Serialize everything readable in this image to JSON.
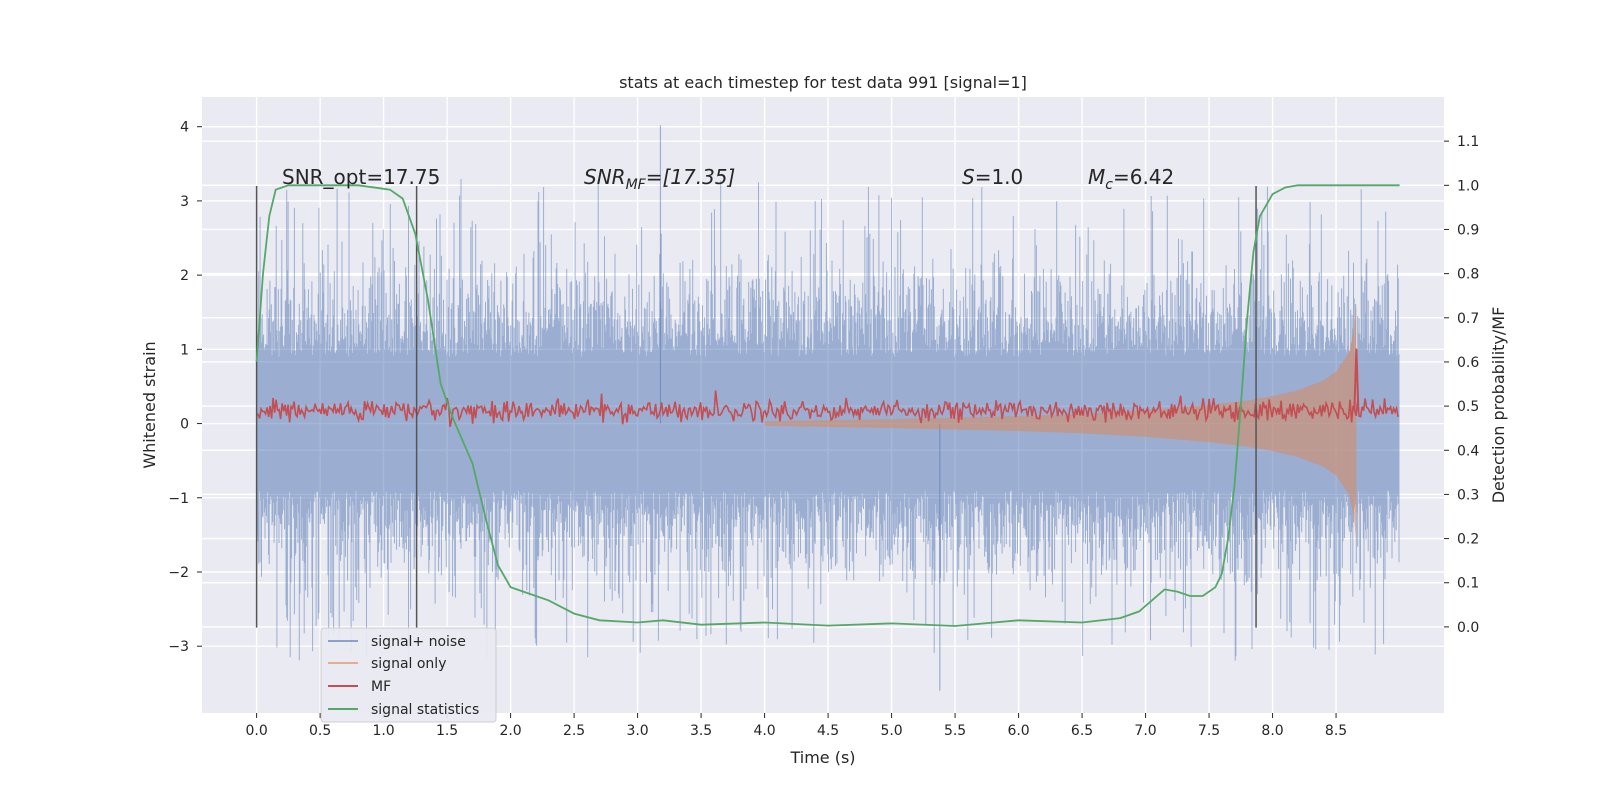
{
  "chart_data": {
    "type": "line",
    "title": "stats at each timestep for test data 991 [signal=1]",
    "xlabel": "Time (s)",
    "ylabel": "Whitened strain",
    "ylabel_right": "Detection probability/MF",
    "xlim": [
      -0.43,
      9.35
    ],
    "ylim": [
      -3.9,
      4.4
    ],
    "ylim_right": [
      -0.195,
      1.2
    ],
    "xticks": [
      "0.0",
      "0.5",
      "1.0",
      "1.5",
      "2.0",
      "2.5",
      "3.0",
      "3.5",
      "4.0",
      "4.5",
      "5.0",
      "5.5",
      "6.0",
      "6.5",
      "7.0",
      "7.5",
      "8.0",
      "8.5"
    ],
    "xtick_values": [
      0,
      0.5,
      1,
      1.5,
      2,
      2.5,
      3,
      3.5,
      4,
      4.5,
      5,
      5.5,
      6,
      6.5,
      7,
      7.5,
      8,
      8.5
    ],
    "yticks_left": [
      "−3",
      "−2",
      "−1",
      "0",
      "1",
      "2",
      "3",
      "4"
    ],
    "ytick_values_left": [
      -3,
      -2,
      -1,
      0,
      1,
      2,
      3,
      4
    ],
    "yticks_right": [
      "0.0",
      "0.1",
      "0.2",
      "0.3",
      "0.4",
      "0.5",
      "0.6",
      "0.7",
      "0.8",
      "0.9",
      "1.0",
      "1.1"
    ],
    "ytick_values_right": [
      0,
      0.1,
      0.2,
      0.3,
      0.4,
      0.5,
      0.6,
      0.7,
      0.8,
      0.9,
      1.0,
      1.1
    ],
    "grid": true,
    "legend_position": "lower-left",
    "legend": [
      "signal+ noise",
      "signal only",
      "MF",
      "signal statistics"
    ],
    "annotations": {
      "snr_opt": "SNR_opt=17.75",
      "snr_mf_main": "SNR",
      "snr_mf_sub": "MF",
      "snr_mf_value": "=[17.35]",
      "s_main": "S",
      "s_value": "=1.0",
      "mc_main": "M",
      "mc_sub": "c",
      "mc_value": "=6.42"
    },
    "vertical_markers_s": [
      0.0,
      1.26,
      7.87
    ],
    "series": [
      {
        "name": "signal+ noise",
        "axis": "left",
        "color": "#4c72b0",
        "alpha": 0.5,
        "description_points": {
          "t_start": 0.0,
          "t_end": 9.0,
          "typical_band": [
            -1.4,
            1.4
          ],
          "peak_max": 4.02,
          "peak_min": -3.6
        }
      },
      {
        "name": "signal only",
        "axis": "left",
        "color": "#dd8452",
        "alpha": 0.5,
        "envelope": {
          "t": [
            4.0,
            5.0,
            6.0,
            6.5,
            7.0,
            7.5,
            7.8,
            8.0,
            8.2,
            8.4,
            8.5,
            8.6,
            8.64,
            8.66
          ],
          "amp": [
            0.03,
            0.06,
            0.1,
            0.13,
            0.18,
            0.25,
            0.31,
            0.37,
            0.45,
            0.58,
            0.7,
            0.95,
            1.25,
            1.6
          ]
        }
      },
      {
        "name": "MF",
        "axis": "right",
        "color": "#c44e52",
        "base": 0.49,
        "noise": 0.012,
        "spike": {
          "t": 8.66,
          "value": 0.63
        }
      },
      {
        "name": "signal statistics",
        "axis": "right",
        "color": "#55a868",
        "t": [
          0.0,
          0.05,
          0.1,
          0.15,
          0.25,
          0.4,
          0.8,
          1.05,
          1.15,
          1.25,
          1.35,
          1.45,
          1.55,
          1.7,
          1.8,
          1.9,
          2.0,
          2.1,
          2.3,
          2.5,
          2.7,
          3.0,
          3.2,
          3.5,
          4.0,
          4.5,
          5.0,
          5.5,
          6.0,
          6.5,
          6.8,
          6.95,
          7.05,
          7.15,
          7.25,
          7.35,
          7.45,
          7.55,
          7.6,
          7.65,
          7.7,
          7.75,
          7.8,
          7.85,
          7.9,
          8.0,
          8.1,
          8.2,
          8.4,
          8.6,
          8.8,
          9.0
        ],
        "values": [
          0.6,
          0.8,
          0.93,
          0.99,
          1.0,
          1.0,
          1.0,
          0.99,
          0.97,
          0.89,
          0.74,
          0.55,
          0.47,
          0.37,
          0.25,
          0.14,
          0.09,
          0.08,
          0.06,
          0.03,
          0.015,
          0.01,
          0.015,
          0.005,
          0.01,
          0.003,
          0.008,
          0.002,
          0.015,
          0.01,
          0.02,
          0.035,
          0.06,
          0.085,
          0.08,
          0.07,
          0.07,
          0.09,
          0.12,
          0.2,
          0.32,
          0.5,
          0.7,
          0.85,
          0.93,
          0.98,
          0.995,
          1.0,
          1.0,
          1.0,
          1.0,
          1.0
        ]
      }
    ]
  },
  "colors": {
    "plot_background": "#eaeaf2",
    "grid": "#ffffff",
    "marker_line": "#555555"
  }
}
